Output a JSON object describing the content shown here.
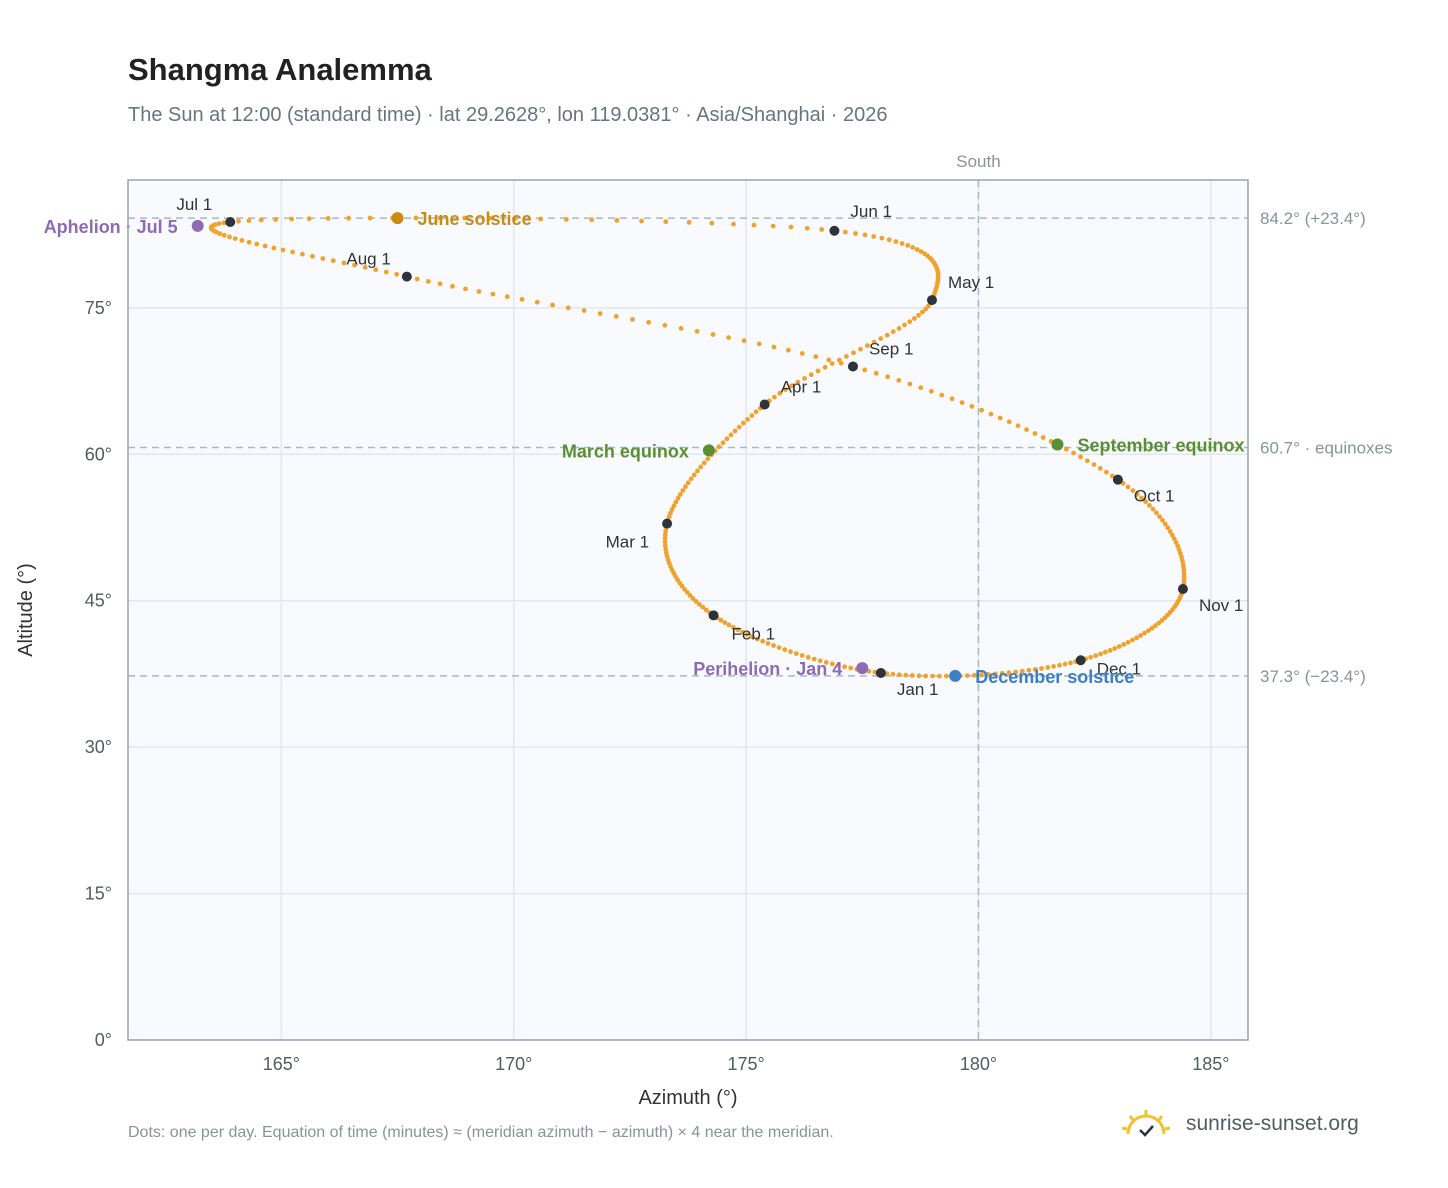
{
  "header": {
    "title": "Shangma Analemma",
    "subtitle": "The Sun at 12:00 (standard time) · lat 29.2628°, lon 119.0381° · Asia/Shanghai · 2026"
  },
  "chart_data": {
    "type": "scatter",
    "title": "Shangma Analemma",
    "xlabel": "Azimuth (°)",
    "ylabel": "Altitude (°)",
    "xlim": [
      161.7,
      185.8
    ],
    "ylim": [
      0,
      88.1
    ],
    "x_ticks": [
      165,
      170,
      175,
      180,
      185
    ],
    "x_tick_labels": [
      "165°",
      "170°",
      "175°",
      "180°",
      "185°"
    ],
    "y_ticks": [
      0,
      15,
      30,
      45,
      60,
      75
    ],
    "y_tick_labels": [
      "0°",
      "15°",
      "30°",
      "45°",
      "60°",
      "75°"
    ],
    "grid": true,
    "meridian": {
      "azimuth": 180,
      "label": "South"
    },
    "reference_lines": [
      {
        "altitude": 84.2,
        "label": "84.2° (+23.4°)"
      },
      {
        "altitude": 60.7,
        "label": "60.7° · equinoxes"
      },
      {
        "altitude": 37.3,
        "label": "37.3° (−23.4°)"
      }
    ],
    "curve_color": "#f0a22e",
    "month_marker_color": "#2d333b",
    "months": [
      {
        "label": "Jan 1",
        "az": 177.9,
        "alt": 37.6
      },
      {
        "label": "Feb 1",
        "az": 174.3,
        "alt": 43.5
      },
      {
        "label": "Mar 1",
        "az": 173.3,
        "alt": 52.9
      },
      {
        "label": "Apr 1",
        "az": 175.4,
        "alt": 65.1
      },
      {
        "label": "May 1",
        "az": 179.0,
        "alt": 75.8
      },
      {
        "label": "Jun 1",
        "az": 176.9,
        "alt": 82.9
      },
      {
        "label": "Jul 1",
        "az": 163.9,
        "alt": 83.8
      },
      {
        "label": "Aug 1",
        "az": 167.7,
        "alt": 78.2
      },
      {
        "label": "Sep 1",
        "az": 177.3,
        "alt": 69.0
      },
      {
        "label": "Oct 1",
        "az": 183.0,
        "alt": 57.4
      },
      {
        "label": "Nov 1",
        "az": 184.4,
        "alt": 46.2
      },
      {
        "label": "Dec 1",
        "az": 182.2,
        "alt": 38.9
      }
    ],
    "events": [
      {
        "label": "Aphelion · Jul 5",
        "az": 163.2,
        "alt": 83.4,
        "color": "#8e6bb5"
      },
      {
        "label": "June solstice",
        "az": 167.5,
        "alt": 84.2,
        "color": "#c98b12"
      },
      {
        "label": "March equinox",
        "az": 174.2,
        "alt": 60.4,
        "color": "#5a8f32"
      },
      {
        "label": "September equinox",
        "az": 181.7,
        "alt": 61.0,
        "color": "#5a8f32"
      },
      {
        "label": "Perihelion · Jan 4",
        "az": 177.5,
        "alt": 38.1,
        "color": "#8e6bb5"
      },
      {
        "label": "December solstice",
        "az": 179.5,
        "alt": 37.3,
        "color": "#3d7ec6"
      }
    ]
  },
  "footer": {
    "note": "Dots: one per day. Equation of time (minutes) ≈ (meridian azimuth − azimuth) × 4 near the meridian.",
    "brand": "sunrise-sunset.org",
    "brand_icon": "sun-logo-icon"
  }
}
